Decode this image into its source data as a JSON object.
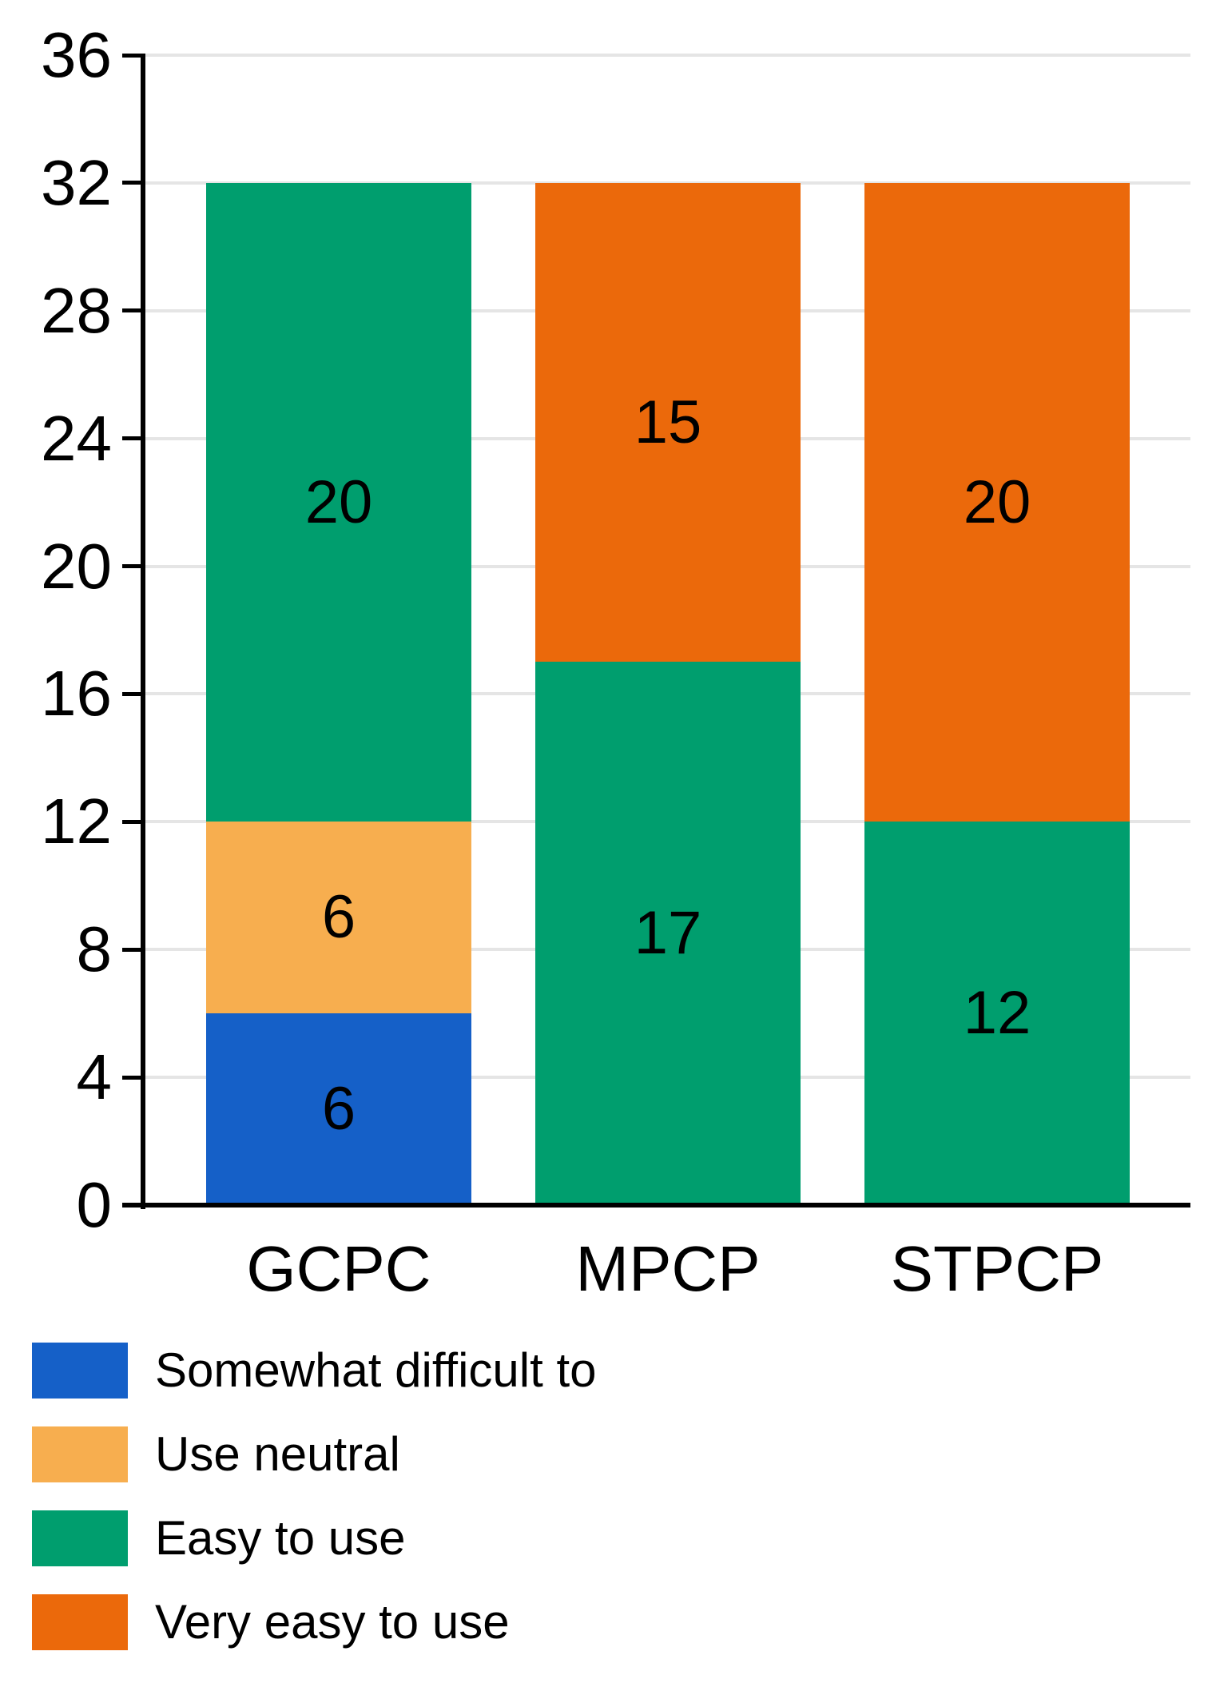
{
  "chart_data": {
    "type": "bar",
    "stacked": true,
    "title": "",
    "categories": [
      "GCPC",
      "MPCP",
      "STPCP"
    ],
    "series": [
      {
        "name": "Somewhat difficult to",
        "color": "#1560C8",
        "values": [
          6,
          0,
          0
        ]
      },
      {
        "name": "Use neutral",
        "color": "#F7AE4F",
        "values": [
          6,
          0,
          0
        ]
      },
      {
        "name": "Easy to use",
        "color": "#009E6E",
        "values": [
          20,
          17,
          12
        ]
      },
      {
        "name": "Very easy to use",
        "color": "#EB690B",
        "values": [
          0,
          15,
          20
        ]
      }
    ],
    "bar_totals": [
      32,
      32,
      32
    ],
    "ylim": [
      0,
      36
    ],
    "yticks": [
      0,
      4,
      8,
      12,
      16,
      20,
      24,
      28,
      32,
      36
    ],
    "xlabel": "",
    "ylabel": "",
    "grid": true,
    "legend_position": "bottom-left",
    "value_labels_shown": true,
    "colors": {
      "grid": "#E5E5E5",
      "axis": "#000000",
      "text": "#000000"
    }
  }
}
